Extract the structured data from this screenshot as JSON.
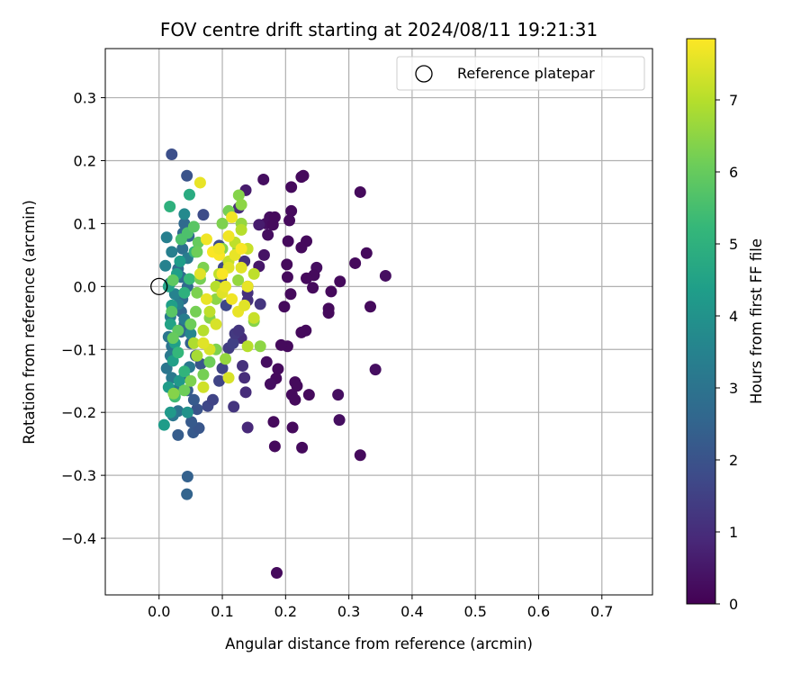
{
  "chart_data": {
    "type": "scatter",
    "title": "FOV centre drift starting at 2024/08/11 19:21:31",
    "xlabel": "Angular distance from reference (arcmin)",
    "ylabel": "Rotation from reference (arcmin)",
    "xlim": [
      -0.085,
      0.78
    ],
    "ylim": [
      -0.49,
      0.378
    ],
    "xticks": [
      0.0,
      0.1,
      0.2,
      0.3,
      0.4,
      0.5,
      0.6,
      0.7
    ],
    "xtick_labels": [
      "0.0",
      "0.1",
      "0.2",
      "0.3",
      "0.4",
      "0.5",
      "0.6",
      "0.7"
    ],
    "yticks": [
      0.3,
      0.2,
      0.1,
      0.0,
      -0.1,
      -0.2,
      -0.3,
      -0.4
    ],
    "ytick_labels": [
      "0.3",
      "0.2",
      "0.1",
      "0.0",
      "−0.1",
      "−0.2",
      "−0.3",
      "−0.4"
    ],
    "grid": true,
    "legend": {
      "placement": "upper-right",
      "entries": [
        {
          "label": "Reference platepar",
          "marker": "open-circle"
        }
      ]
    },
    "reference_point": {
      "x": 0.0,
      "y": 0.0
    },
    "colorbar": {
      "label": "Hours from first FF file",
      "colormap": "viridis",
      "range": [
        0,
        7.85
      ],
      "ticks": [
        0,
        1,
        2,
        3,
        4,
        5,
        6,
        7
      ],
      "tick_labels": [
        "0",
        "1",
        "2",
        "3",
        "4",
        "5",
        "6",
        "7"
      ]
    },
    "points": [
      {
        "x": 0.186,
        "y": -0.455,
        "t": 0.2
      },
      {
        "x": 0.318,
        "y": 0.15,
        "t": 0.2
      },
      {
        "x": 0.358,
        "y": 0.017,
        "t": 0.3
      },
      {
        "x": 0.342,
        "y": -0.132,
        "t": 0.3
      },
      {
        "x": 0.334,
        "y": -0.032,
        "t": 0.2
      },
      {
        "x": 0.328,
        "y": 0.053,
        "t": 0.2
      },
      {
        "x": 0.31,
        "y": 0.037,
        "t": 0.2
      },
      {
        "x": 0.318,
        "y": -0.268,
        "t": 0.2
      },
      {
        "x": 0.285,
        "y": -0.212,
        "t": 0.3
      },
      {
        "x": 0.283,
        "y": -0.172,
        "t": 0.3
      },
      {
        "x": 0.286,
        "y": 0.008,
        "t": 0.2
      },
      {
        "x": 0.272,
        "y": -0.008,
        "t": 0.2
      },
      {
        "x": 0.268,
        "y": -0.035,
        "t": 0.2
      },
      {
        "x": 0.268,
        "y": -0.042,
        "t": 0.2
      },
      {
        "x": 0.249,
        "y": 0.03,
        "t": 0.3
      },
      {
        "x": 0.245,
        "y": 0.018,
        "t": 0.2
      },
      {
        "x": 0.243,
        "y": -0.002,
        "t": 0.2
      },
      {
        "x": 0.233,
        "y": 0.013,
        "t": 0.2
      },
      {
        "x": 0.233,
        "y": 0.072,
        "t": 0.2
      },
      {
        "x": 0.225,
        "y": 0.062,
        "t": 0.2
      },
      {
        "x": 0.232,
        "y": -0.07,
        "t": 0.2
      },
      {
        "x": 0.225,
        "y": -0.073,
        "t": 0.2
      },
      {
        "x": 0.237,
        "y": -0.172,
        "t": 0.2
      },
      {
        "x": 0.228,
        "y": 0.176,
        "t": 0.2
      },
      {
        "x": 0.225,
        "y": 0.174,
        "t": 0.2
      },
      {
        "x": 0.226,
        "y": -0.256,
        "t": 0.2
      },
      {
        "x": 0.209,
        "y": 0.158,
        "t": 0.2
      },
      {
        "x": 0.209,
        "y": 0.12,
        "t": 0.2
      },
      {
        "x": 0.206,
        "y": 0.105,
        "t": 0.2
      },
      {
        "x": 0.204,
        "y": 0.072,
        "t": 0.2
      },
      {
        "x": 0.202,
        "y": 0.035,
        "t": 0.2
      },
      {
        "x": 0.203,
        "y": 0.015,
        "t": 0.2
      },
      {
        "x": 0.208,
        "y": -0.012,
        "t": 0.2
      },
      {
        "x": 0.203,
        "y": -0.095,
        "t": 0.2
      },
      {
        "x": 0.215,
        "y": -0.152,
        "t": 0.2
      },
      {
        "x": 0.218,
        "y": -0.158,
        "t": 0.2
      },
      {
        "x": 0.21,
        "y": -0.172,
        "t": 0.2
      },
      {
        "x": 0.215,
        "y": -0.18,
        "t": 0.2
      },
      {
        "x": 0.211,
        "y": -0.224,
        "t": 0.2
      },
      {
        "x": 0.198,
        "y": -0.032,
        "t": 0.2
      },
      {
        "x": 0.193,
        "y": -0.093,
        "t": 0.2
      },
      {
        "x": 0.188,
        "y": -0.131,
        "t": 0.2
      },
      {
        "x": 0.185,
        "y": -0.146,
        "t": 0.2
      },
      {
        "x": 0.181,
        "y": -0.215,
        "t": 0.2
      },
      {
        "x": 0.183,
        "y": -0.254,
        "t": 0.2
      },
      {
        "x": 0.176,
        "y": -0.155,
        "t": 0.3
      },
      {
        "x": 0.165,
        "y": 0.17,
        "t": 0.3
      },
      {
        "x": 0.175,
        "y": 0.11,
        "t": 0.3
      },
      {
        "x": 0.183,
        "y": 0.11,
        "t": 0.2
      },
      {
        "x": 0.169,
        "y": 0.1,
        "t": 0.3
      },
      {
        "x": 0.18,
        "y": 0.098,
        "t": 0.2
      },
      {
        "x": 0.172,
        "y": 0.082,
        "t": 0.3
      },
      {
        "x": 0.166,
        "y": 0.05,
        "t": 0.4
      },
      {
        "x": 0.158,
        "y": 0.032,
        "t": 0.5
      },
      {
        "x": 0.158,
        "y": 0.098,
        "t": 0.6
      },
      {
        "x": 0.17,
        "y": -0.12,
        "t": 0.3
      },
      {
        "x": 0.16,
        "y": -0.028,
        "t": 1.2
      },
      {
        "x": 0.14,
        "y": -0.224,
        "t": 0.9
      },
      {
        "x": 0.137,
        "y": -0.168,
        "t": 1.0
      },
      {
        "x": 0.135,
        "y": -0.145,
        "t": 1.0
      },
      {
        "x": 0.132,
        "y": -0.126,
        "t": 1.1
      },
      {
        "x": 0.13,
        "y": -0.082,
        "t": 1.0
      },
      {
        "x": 0.137,
        "y": 0.153,
        "t": 0.6
      },
      {
        "x": 0.118,
        "y": -0.191,
        "t": 1.2
      },
      {
        "x": 0.11,
        "y": -0.098,
        "t": 1.4
      },
      {
        "x": 0.117,
        "y": -0.09,
        "t": 1.5
      },
      {
        "x": 0.12,
        "y": -0.075,
        "t": 1.3
      },
      {
        "x": 0.126,
        "y": -0.07,
        "t": 1.2
      },
      {
        "x": 0.14,
        "y": -0.022,
        "t": 1.1
      },
      {
        "x": 0.14,
        "y": -0.01,
        "t": 1.1
      },
      {
        "x": 0.14,
        "y": 0.0,
        "t": 1.2
      },
      {
        "x": 0.135,
        "y": 0.04,
        "t": 1.1
      },
      {
        "x": 0.126,
        "y": 0.125,
        "t": 1.0
      },
      {
        "x": 0.02,
        "y": 0.21,
        "t": 1.9
      },
      {
        "x": 0.044,
        "y": 0.176,
        "t": 2.0
      },
      {
        "x": 0.07,
        "y": 0.114,
        "t": 1.8
      },
      {
        "x": 0.077,
        "y": -0.19,
        "t": 1.7
      },
      {
        "x": 0.085,
        "y": -0.18,
        "t": 1.6
      },
      {
        "x": 0.095,
        "y": -0.15,
        "t": 1.6
      },
      {
        "x": 0.1,
        "y": -0.13,
        "t": 1.6
      },
      {
        "x": 0.106,
        "y": -0.03,
        "t": 1.7
      },
      {
        "x": 0.098,
        "y": 0.01,
        "t": 1.7
      },
      {
        "x": 0.102,
        "y": 0.03,
        "t": 1.7
      },
      {
        "x": 0.095,
        "y": 0.065,
        "t": 1.8
      },
      {
        "x": 0.045,
        "y": -0.302,
        "t": 2.4
      },
      {
        "x": 0.044,
        "y": -0.33,
        "t": 2.5
      },
      {
        "x": 0.03,
        "y": -0.236,
        "t": 2.3
      },
      {
        "x": 0.054,
        "y": -0.232,
        "t": 2.2
      },
      {
        "x": 0.063,
        "y": -0.225,
        "t": 2.1
      },
      {
        "x": 0.051,
        "y": -0.215,
        "t": 2.2
      },
      {
        "x": 0.06,
        "y": -0.195,
        "t": 2.0
      },
      {
        "x": 0.055,
        "y": -0.18,
        "t": 2.2
      },
      {
        "x": 0.045,
        "y": -0.165,
        "t": 2.3
      },
      {
        "x": 0.04,
        "y": -0.144,
        "t": 2.4
      },
      {
        "x": 0.066,
        "y": -0.123,
        "t": 2.1
      },
      {
        "x": 0.058,
        "y": -0.11,
        "t": 2.2
      },
      {
        "x": 0.05,
        "y": -0.09,
        "t": 2.4
      },
      {
        "x": 0.035,
        "y": -0.072,
        "t": 2.6
      },
      {
        "x": 0.04,
        "y": -0.06,
        "t": 2.6
      },
      {
        "x": 0.035,
        "y": -0.04,
        "t": 2.6
      },
      {
        "x": 0.037,
        "y": -0.02,
        "t": 2.7
      },
      {
        "x": 0.045,
        "y": 0.0,
        "t": 2.7
      },
      {
        "x": 0.035,
        "y": 0.015,
        "t": 2.8
      },
      {
        "x": 0.03,
        "y": 0.028,
        "t": 2.8
      },
      {
        "x": 0.037,
        "y": 0.06,
        "t": 2.9
      },
      {
        "x": 0.038,
        "y": 0.085,
        "t": 2.7
      },
      {
        "x": 0.047,
        "y": 0.08,
        "t": 2.6
      },
      {
        "x": 0.04,
        "y": 0.1,
        "t": 2.7
      },
      {
        "x": 0.02,
        "y": -0.095,
        "t": 3.0
      },
      {
        "x": 0.015,
        "y": -0.08,
        "t": 3.1
      },
      {
        "x": 0.012,
        "y": -0.13,
        "t": 3.1
      },
      {
        "x": 0.018,
        "y": -0.11,
        "t": 3.2
      },
      {
        "x": 0.02,
        "y": -0.145,
        "t": 3.2
      },
      {
        "x": 0.025,
        "y": -0.165,
        "t": 3.1
      },
      {
        "x": 0.03,
        "y": -0.198,
        "t": 3.0
      },
      {
        "x": 0.022,
        "y": -0.205,
        "t": 3.1
      },
      {
        "x": 0.018,
        "y": -0.048,
        "t": 3.3
      },
      {
        "x": 0.01,
        "y": 0.033,
        "t": 3.5
      },
      {
        "x": 0.012,
        "y": 0.078,
        "t": 3.4
      },
      {
        "x": 0.02,
        "y": 0.055,
        "t": 3.4
      },
      {
        "x": 0.017,
        "y": 0.005,
        "t": 3.6
      },
      {
        "x": 0.025,
        "y": -0.012,
        "t": 3.5
      },
      {
        "x": 0.03,
        "y": -0.028,
        "t": 3.4
      },
      {
        "x": 0.04,
        "y": -0.052,
        "t": 3.3
      },
      {
        "x": 0.048,
        "y": -0.128,
        "t": 3.2
      },
      {
        "x": 0.045,
        "y": 0.045,
        "t": 3.3
      },
      {
        "x": 0.05,
        "y": -0.075,
        "t": 3.6
      },
      {
        "x": 0.04,
        "y": 0.115,
        "t": 3.7
      },
      {
        "x": 0.008,
        "y": -0.22,
        "t": 4.3
      },
      {
        "x": 0.018,
        "y": -0.2,
        "t": 4.2
      },
      {
        "x": 0.015,
        "y": -0.16,
        "t": 4.3
      },
      {
        "x": 0.022,
        "y": -0.118,
        "t": 4.4
      },
      {
        "x": 0.025,
        "y": -0.09,
        "t": 4.4
      },
      {
        "x": 0.018,
        "y": -0.06,
        "t": 4.5
      },
      {
        "x": 0.02,
        "y": -0.03,
        "t": 4.4
      },
      {
        "x": 0.015,
        "y": 0.0,
        "t": 4.5
      },
      {
        "x": 0.028,
        "y": 0.02,
        "t": 4.4
      },
      {
        "x": 0.033,
        "y": 0.04,
        "t": 4.3
      },
      {
        "x": 0.032,
        "y": -0.15,
        "t": 4.2
      },
      {
        "x": 0.045,
        "y": -0.2,
        "t": 4.0
      },
      {
        "x": 0.048,
        "y": 0.146,
        "t": 4.8
      },
      {
        "x": 0.017,
        "y": 0.127,
        "t": 5.0
      },
      {
        "x": 0.056,
        "y": 0.055,
        "t": 5.1
      },
      {
        "x": 0.048,
        "y": 0.012,
        "t": 5.3
      },
      {
        "x": 0.04,
        "y": -0.01,
        "t": 5.0
      },
      {
        "x": 0.03,
        "y": -0.105,
        "t": 5.2
      },
      {
        "x": 0.04,
        "y": -0.135,
        "t": 5.1
      },
      {
        "x": 0.025,
        "y": -0.175,
        "t": 5.4
      },
      {
        "x": 0.035,
        "y": 0.075,
        "t": 5.6
      },
      {
        "x": 0.045,
        "y": 0.085,
        "t": 5.6
      },
      {
        "x": 0.055,
        "y": 0.095,
        "t": 5.8
      },
      {
        "x": 0.062,
        "y": 0.07,
        "t": 6.0
      },
      {
        "x": 0.022,
        "y": 0.01,
        "t": 5.9
      },
      {
        "x": 0.02,
        "y": -0.04,
        "t": 5.8
      },
      {
        "x": 0.03,
        "y": -0.07,
        "t": 5.9
      },
      {
        "x": 0.022,
        "y": -0.082,
        "t": 6.0
      },
      {
        "x": 0.05,
        "y": -0.06,
        "t": 6.1
      },
      {
        "x": 0.058,
        "y": -0.04,
        "t": 6.2
      },
      {
        "x": 0.06,
        "y": -0.01,
        "t": 6.3
      },
      {
        "x": 0.065,
        "y": 0.012,
        "t": 6.2
      },
      {
        "x": 0.07,
        "y": 0.03,
        "t": 6.3
      },
      {
        "x": 0.06,
        "y": 0.055,
        "t": 6.1
      },
      {
        "x": 0.04,
        "y": -0.165,
        "t": 6.1
      },
      {
        "x": 0.05,
        "y": -0.15,
        "t": 6.3
      },
      {
        "x": 0.07,
        "y": -0.14,
        "t": 6.2
      },
      {
        "x": 0.08,
        "y": -0.12,
        "t": 6.1
      },
      {
        "x": 0.09,
        "y": -0.1,
        "t": 6.3
      },
      {
        "x": 0.08,
        "y": -0.05,
        "t": 6.4
      },
      {
        "x": 0.09,
        "y": -0.02,
        "t": 6.5
      },
      {
        "x": 0.1,
        "y": 0.06,
        "t": 6.4
      },
      {
        "x": 0.1,
        "y": 0.1,
        "t": 6.3
      },
      {
        "x": 0.11,
        "y": 0.12,
        "t": 6.2
      },
      {
        "x": 0.126,
        "y": 0.145,
        "t": 6.4
      },
      {
        "x": 0.13,
        "y": 0.13,
        "t": 6.5
      },
      {
        "x": 0.13,
        "y": 0.1,
        "t": 6.6
      },
      {
        "x": 0.125,
        "y": 0.06,
        "t": 6.5
      },
      {
        "x": 0.125,
        "y": 0.01,
        "t": 6.6
      },
      {
        "x": 0.15,
        "y": -0.055,
        "t": 6.4
      },
      {
        "x": 0.16,
        "y": -0.095,
        "t": 6.5
      },
      {
        "x": 0.105,
        "y": -0.115,
        "t": 6.6
      },
      {
        "x": 0.023,
        "y": -0.17,
        "t": 6.4
      },
      {
        "x": 0.06,
        "y": -0.11,
        "t": 6.8
      },
      {
        "x": 0.055,
        "y": -0.09,
        "t": 6.9
      },
      {
        "x": 0.07,
        "y": -0.07,
        "t": 7.0
      },
      {
        "x": 0.08,
        "y": -0.04,
        "t": 7.1
      },
      {
        "x": 0.09,
        "y": 0.0,
        "t": 7.0
      },
      {
        "x": 0.095,
        "y": 0.02,
        "t": 7.1
      },
      {
        "x": 0.11,
        "y": 0.04,
        "t": 7.2
      },
      {
        "x": 0.12,
        "y": 0.07,
        "t": 7.1
      },
      {
        "x": 0.13,
        "y": 0.09,
        "t": 7.0
      },
      {
        "x": 0.14,
        "y": 0.06,
        "t": 7.2
      },
      {
        "x": 0.15,
        "y": 0.02,
        "t": 7.1
      },
      {
        "x": 0.14,
        "y": -0.095,
        "t": 7.0
      },
      {
        "x": 0.15,
        "y": -0.05,
        "t": 7.2
      },
      {
        "x": 0.07,
        "y": -0.16,
        "t": 7.3
      },
      {
        "x": 0.08,
        "y": -0.1,
        "t": 7.4
      },
      {
        "x": 0.09,
        "y": -0.06,
        "t": 7.4
      },
      {
        "x": 0.1,
        "y": -0.01,
        "t": 7.5
      },
      {
        "x": 0.11,
        "y": 0.03,
        "t": 7.5
      },
      {
        "x": 0.12,
        "y": 0.05,
        "t": 7.6
      },
      {
        "x": 0.13,
        "y": 0.03,
        "t": 7.5
      },
      {
        "x": 0.14,
        "y": 0.0,
        "t": 7.6
      },
      {
        "x": 0.11,
        "y": 0.08,
        "t": 7.7
      },
      {
        "x": 0.115,
        "y": 0.11,
        "t": 7.7
      },
      {
        "x": 0.095,
        "y": 0.05,
        "t": 7.8
      },
      {
        "x": 0.13,
        "y": 0.06,
        "t": 7.8
      },
      {
        "x": 0.065,
        "y": 0.165,
        "t": 7.6
      },
      {
        "x": 0.075,
        "y": 0.075,
        "t": 7.7
      },
      {
        "x": 0.085,
        "y": 0.055,
        "t": 7.8
      },
      {
        "x": 0.095,
        "y": 0.06,
        "t": 7.7
      },
      {
        "x": 0.1,
        "y": 0.02,
        "t": 7.8
      },
      {
        "x": 0.105,
        "y": 0.0,
        "t": 7.6
      },
      {
        "x": 0.115,
        "y": -0.02,
        "t": 7.7
      },
      {
        "x": 0.125,
        "y": -0.04,
        "t": 7.6
      },
      {
        "x": 0.135,
        "y": -0.03,
        "t": 7.5
      },
      {
        "x": 0.11,
        "y": -0.145,
        "t": 7.4
      },
      {
        "x": 0.07,
        "y": -0.09,
        "t": 7.5
      },
      {
        "x": 0.075,
        "y": -0.02,
        "t": 7.6
      },
      {
        "x": 0.065,
        "y": 0.02,
        "t": 7.5
      }
    ]
  }
}
